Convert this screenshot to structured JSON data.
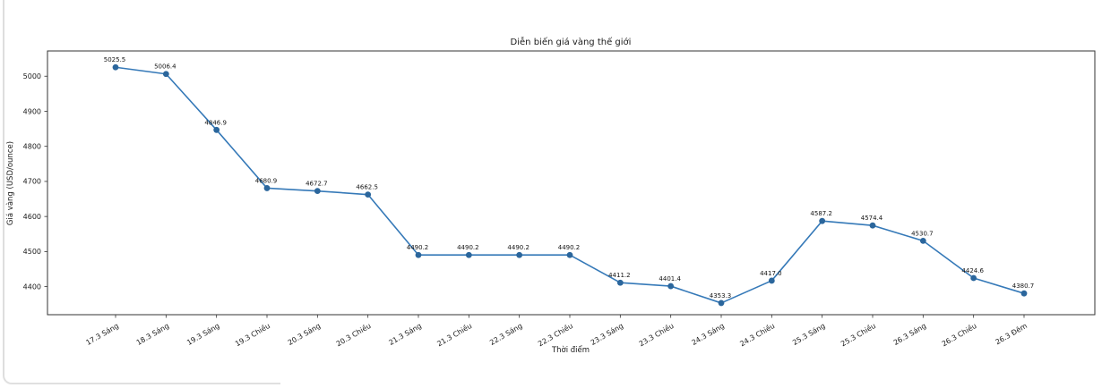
{
  "chart_data": {
    "type": "line",
    "title": "Diễn biến giá vàng thế giới",
    "xlabel": "Thời điểm",
    "ylabel": "Giá vàng (USD/ounce)",
    "categories": [
      "17.3 Sáng",
      "18.3 Sáng",
      "19.3 Sáng",
      "19.3 Chiều",
      "20.3 Sáng",
      "20.3 Chiều",
      "21.3 Sáng",
      "21.3 Chiều",
      "22.3 Sáng",
      "22.3 Chiều",
      "23.3 Sáng",
      "23.3 Chiều",
      "24.3 Sáng",
      "24.3 Chiều",
      "25.3 Sáng",
      "25.3 Chiều",
      "26.3 Sáng",
      "26.3 Chiều",
      "26.3 Đêm"
    ],
    "series": [
      {
        "name": "Giá vàng thế giới",
        "values": [
          5025.5,
          5006.4,
          4846.9,
          4680.9,
          4672.7,
          4662.5,
          4490.2,
          4490.2,
          4490.2,
          4490.2,
          4411.2,
          4401.4,
          4353.3,
          4417.0,
          4587.2,
          4574.4,
          4530.7,
          4424.6,
          4380.7
        ]
      }
    ],
    "point_labels": [
      "5025.5",
      "5006.4",
      "4846.9",
      "4680.9",
      "4672.7",
      "4662.5",
      "4490.2",
      "4490.2",
      "4490.2",
      "4490.2",
      "4411.2",
      "4401.4",
      "4353.3",
      "4417.0",
      "4587.2",
      "4574.4",
      "4530.7",
      "4424.6",
      "4380.7"
    ],
    "yticks": [
      4400,
      4500,
      4600,
      4700,
      4800,
      4900,
      5000
    ],
    "ylim": [
      4320,
      5072
    ],
    "grid": false,
    "legend": "none",
    "line_color": "#3579b8",
    "marker_color": "#2b669c",
    "spine_color": "#333333",
    "text_color": "#1a1a1a"
  }
}
